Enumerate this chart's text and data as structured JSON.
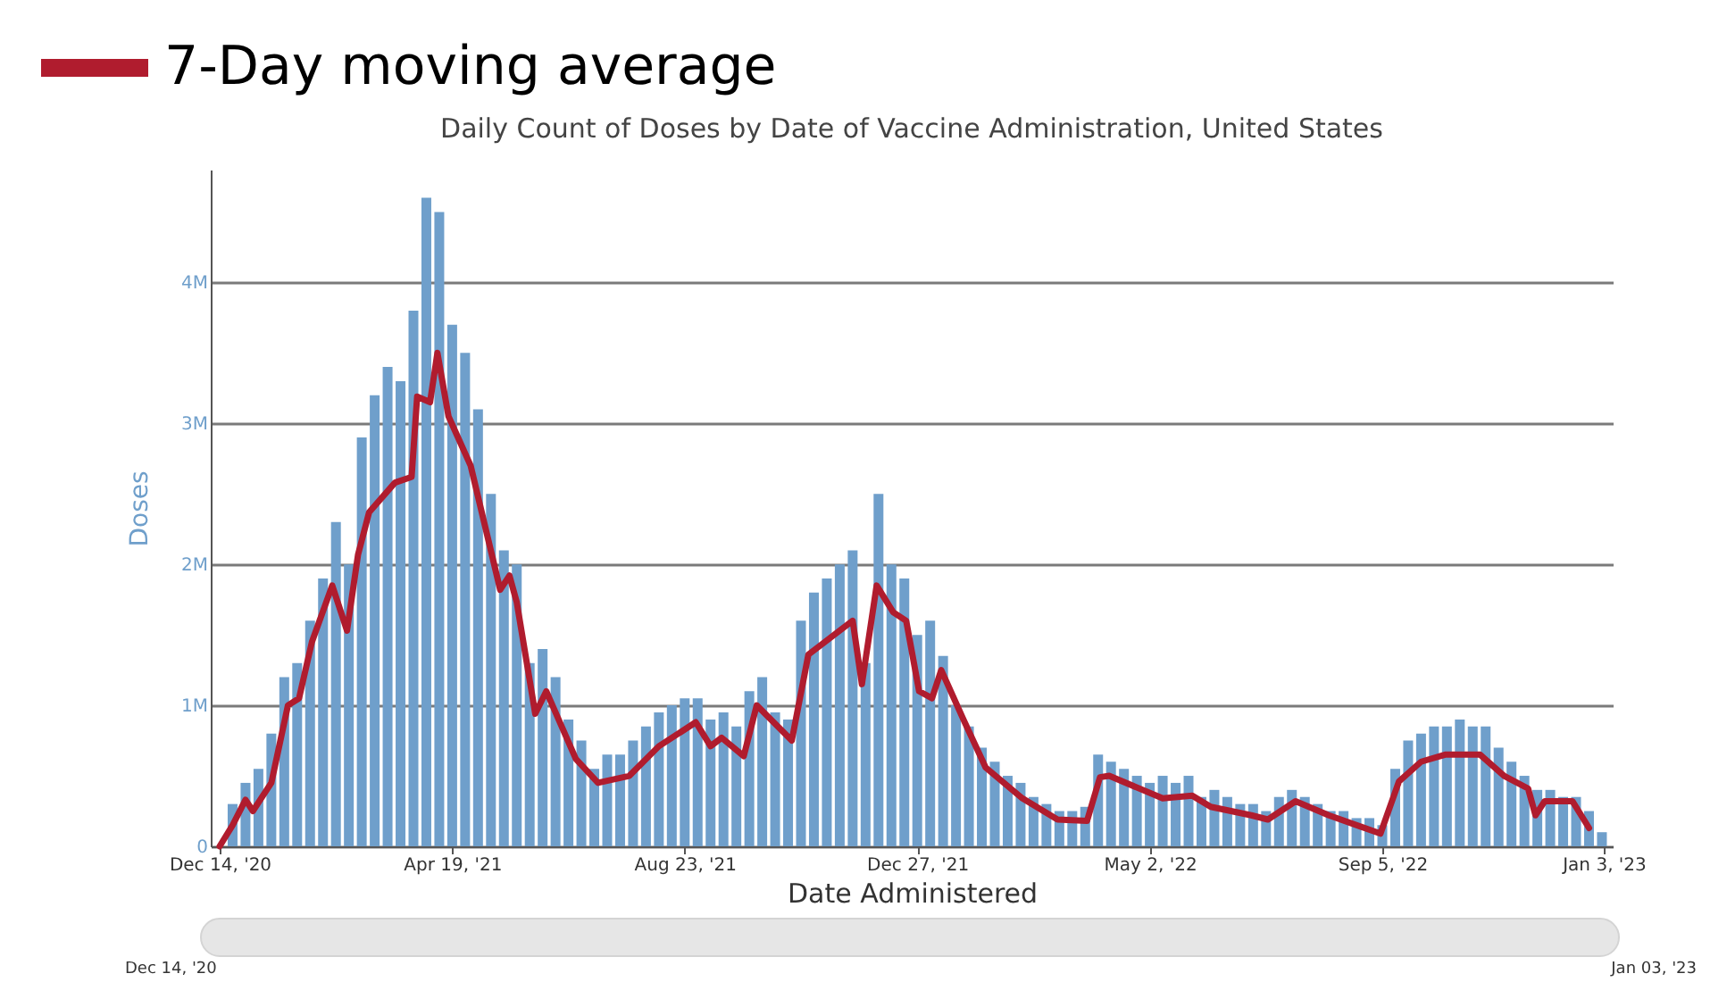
{
  "chart_data": {
    "type": "bar",
    "title": "Daily Count of Doses by Date of Vaccine Administration, United States",
    "xlabel": "Date Administered",
    "ylabel": "Doses",
    "xlim": [
      "2020-12-14",
      "2023-01-03"
    ],
    "xticks": [
      {
        "value": "2020-12-14",
        "label": "Dec 14, '20"
      },
      {
        "value": "2021-04-19",
        "label": "Apr 19, '21"
      },
      {
        "value": "2021-08-23",
        "label": "Aug 23, '21"
      },
      {
        "value": "2021-12-27",
        "label": "Dec 27, '21"
      },
      {
        "value": "2022-05-02",
        "label": "May 2, '22"
      },
      {
        "value": "2022-09-05",
        "label": "Sep 5, '22"
      },
      {
        "value": "2023-01-03",
        "label": "Jan 3, '23"
      }
    ],
    "ylim": [
      0,
      4800000
    ],
    "yticks": [
      {
        "value": 0,
        "label": "0"
      },
      {
        "value": 1000000,
        "label": "1M"
      },
      {
        "value": 2000000,
        "label": "2M"
      },
      {
        "value": 3000000,
        "label": "3M"
      },
      {
        "value": 4000000,
        "label": "4M"
      }
    ],
    "grid": "y",
    "legend": "top left",
    "annotations": [
      "Dec 14, '20",
      "Jan 03, '23"
    ],
    "series": [
      {
        "color": "#6f9fcb",
        "x": [
          "2020-12-21",
          "2020-12-28",
          "2021-01-04",
          "2021-01-11",
          "2021-01-18",
          "2021-01-25",
          "2021-02-01",
          "2021-02-08",
          "2021-02-15",
          "2021-02-22",
          "2021-03-01",
          "2021-03-08",
          "2021-03-15",
          "2021-03-22",
          "2021-03-29",
          "2021-04-05",
          "2021-04-12",
          "2021-04-19",
          "2021-04-26",
          "2021-05-03",
          "2021-05-10",
          "2021-05-17",
          "2021-05-24",
          "2021-05-31",
          "2021-06-07",
          "2021-06-14",
          "2021-06-21",
          "2021-06-28",
          "2021-07-05",
          "2021-07-12",
          "2021-07-19",
          "2021-07-26",
          "2021-08-02",
          "2021-08-09",
          "2021-08-16",
          "2021-08-23",
          "2021-08-30",
          "2021-09-06",
          "2021-09-13",
          "2021-09-20",
          "2021-09-27",
          "2021-10-04",
          "2021-10-11",
          "2021-10-18",
          "2021-10-25",
          "2021-11-01",
          "2021-11-08",
          "2021-11-15",
          "2021-11-22",
          "2021-11-29",
          "2021-12-06",
          "2021-12-13",
          "2021-12-20",
          "2021-12-27",
          "2022-01-03",
          "2022-01-10",
          "2022-01-17",
          "2022-01-24",
          "2022-01-31",
          "2022-02-07",
          "2022-02-14",
          "2022-02-21",
          "2022-02-28",
          "2022-03-07",
          "2022-03-14",
          "2022-03-21",
          "2022-03-28",
          "2022-04-04",
          "2022-04-11",
          "2022-04-18",
          "2022-04-25",
          "2022-05-02",
          "2022-05-09",
          "2022-05-16",
          "2022-05-23",
          "2022-05-30",
          "2022-06-06",
          "2022-06-13",
          "2022-06-20",
          "2022-06-27",
          "2022-07-04",
          "2022-07-11",
          "2022-07-18",
          "2022-07-25",
          "2022-08-01",
          "2022-08-08",
          "2022-08-15",
          "2022-08-22",
          "2022-08-29",
          "2022-09-05",
          "2022-09-12",
          "2022-09-19",
          "2022-09-26",
          "2022-10-03",
          "2022-10-10",
          "2022-10-17",
          "2022-10-24",
          "2022-10-31",
          "2022-11-07",
          "2022-11-14",
          "2022-11-21",
          "2022-11-28",
          "2022-12-05",
          "2022-12-12",
          "2022-12-19",
          "2022-12-26",
          "2023-01-02"
        ],
        "values": [
          300000,
          450000,
          550000,
          800000,
          1200000,
          1300000,
          1600000,
          1900000,
          2300000,
          2000000,
          2900000,
          3200000,
          3400000,
          3300000,
          3800000,
          4600000,
          4500000,
          3700000,
          3500000,
          3100000,
          2500000,
          2100000,
          2000000,
          1300000,
          1400000,
          1200000,
          900000,
          750000,
          550000,
          650000,
          650000,
          750000,
          850000,
          950000,
          1000000,
          1050000,
          1050000,
          900000,
          950000,
          850000,
          1100000,
          1200000,
          950000,
          900000,
          1600000,
          1800000,
          1900000,
          2000000,
          2100000,
          1300000,
          2500000,
          2000000,
          1900000,
          1500000,
          1600000,
          1350000,
          1000000,
          850000,
          700000,
          600000,
          500000,
          450000,
          350000,
          300000,
          250000,
          250000,
          280000,
          650000,
          600000,
          550000,
          500000,
          450000,
          500000,
          450000,
          500000,
          350000,
          400000,
          350000,
          300000,
          300000,
          250000,
          350000,
          400000,
          350000,
          300000,
          250000,
          250000,
          200000,
          200000,
          150000,
          550000,
          750000,
          800000,
          850000,
          850000,
          900000,
          850000,
          850000,
          700000,
          600000,
          500000,
          400000,
          400000,
          350000,
          350000,
          250000,
          100000
        ]
      },
      {
        "type": "line",
        "name": "7-Day moving average",
        "color": "#b01c2e",
        "x": [
          "2020-12-14",
          "2020-12-21",
          "2020-12-28",
          "2021-01-01",
          "2021-01-11",
          "2021-01-20",
          "2021-01-26",
          "2021-02-02",
          "2021-02-13",
          "2021-02-21",
          "2021-02-27",
          "2021-03-05",
          "2021-03-19",
          "2021-03-28",
          "2021-03-31",
          "2021-04-07",
          "2021-04-11",
          "2021-04-17",
          "2021-04-29",
          "2021-05-11",
          "2021-05-15",
          "2021-05-20",
          "2021-05-24",
          "2021-06-03",
          "2021-06-09",
          "2021-06-25",
          "2021-07-07",
          "2021-07-24",
          "2021-08-09",
          "2021-08-29",
          "2021-09-06",
          "2021-09-12",
          "2021-09-24",
          "2021-10-01",
          "2021-10-20",
          "2021-10-29",
          "2021-11-22",
          "2021-11-27",
          "2021-12-05",
          "2021-12-14",
          "2021-12-21",
          "2021-12-28",
          "2022-01-04",
          "2022-01-09",
          "2022-01-21",
          "2022-02-02",
          "2022-02-22",
          "2022-03-13",
          "2022-03-29",
          "2022-04-05",
          "2022-04-10",
          "2022-05-09",
          "2022-05-25",
          "2022-06-04",
          "2022-06-26",
          "2022-07-05",
          "2022-07-20",
          "2022-08-07",
          "2022-09-04",
          "2022-09-14",
          "2022-09-26",
          "2022-10-09",
          "2022-10-28",
          "2022-11-10",
          "2022-11-23",
          "2022-11-27",
          "2022-12-02",
          "2022-12-17",
          "2022-12-26"
        ],
        "values": [
          0,
          150000,
          330000,
          250000,
          450000,
          1000000,
          1050000,
          1450000,
          1850000,
          1530000,
          2070000,
          2370000,
          2580000,
          2620000,
          3190000,
          3150000,
          3500000,
          3050000,
          2700000,
          2040000,
          1820000,
          1920000,
          1730000,
          940000,
          1100000,
          620000,
          450000,
          500000,
          710000,
          880000,
          710000,
          770000,
          640000,
          1000000,
          750000,
          1360000,
          1600000,
          1150000,
          1850000,
          1660000,
          1600000,
          1100000,
          1050000,
          1250000,
          900000,
          560000,
          340000,
          190000,
          180000,
          490000,
          500000,
          340000,
          360000,
          280000,
          220000,
          190000,
          320000,
          220000,
          90000,
          460000,
          600000,
          650000,
          650000,
          500000,
          410000,
          220000,
          320000,
          320000,
          130000
        ]
      }
    ]
  }
}
